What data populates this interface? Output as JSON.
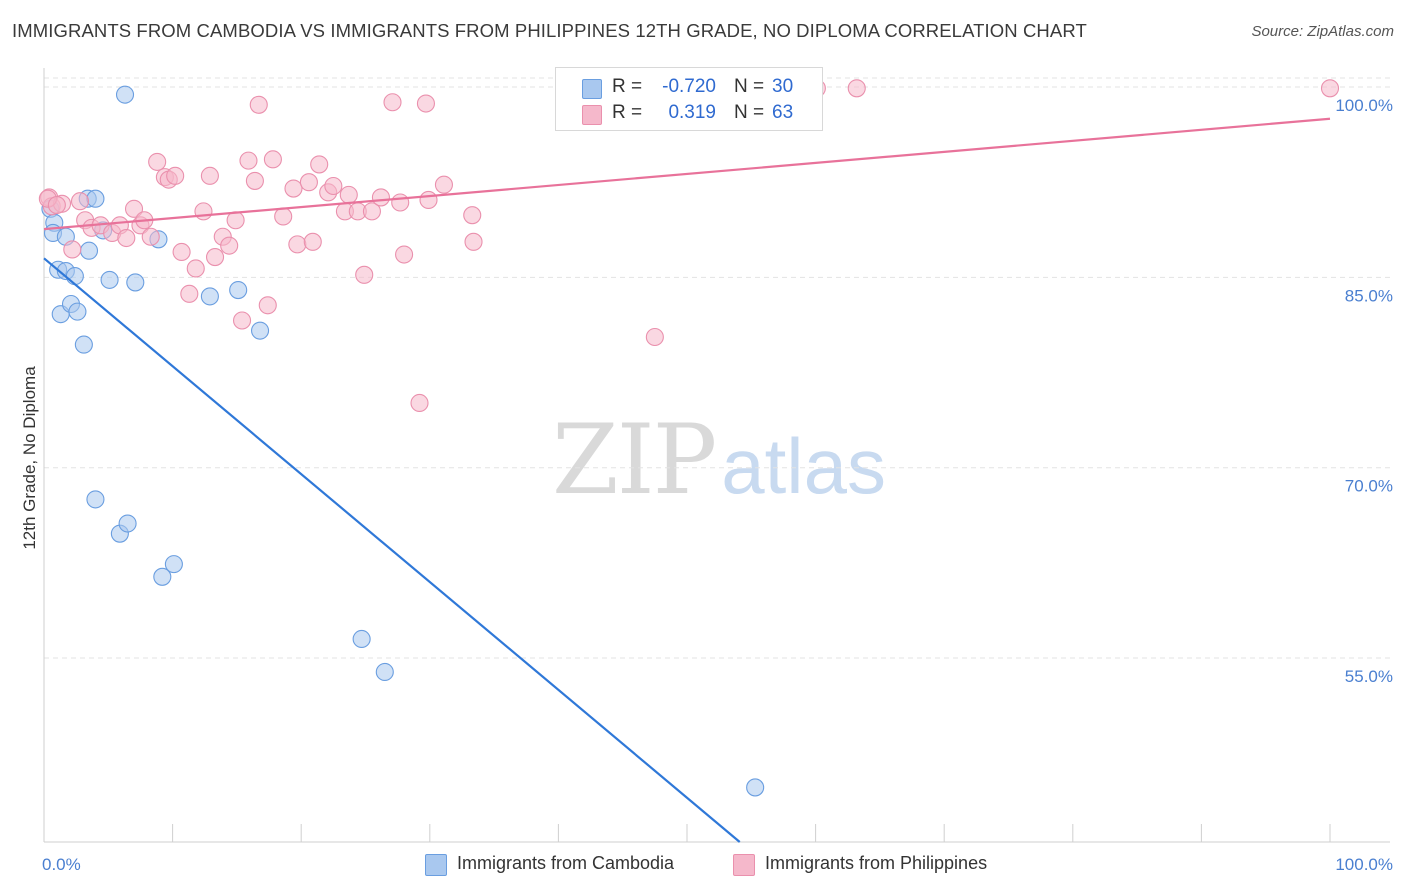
{
  "title": "IMMIGRANTS FROM CAMBODIA VS IMMIGRANTS FROM PHILIPPINES 12TH GRADE, NO DIPLOMA CORRELATION CHART",
  "source": "Source: ZipAtlas.com",
  "watermark": {
    "zip": "ZIP",
    "atlas": "atlas"
  },
  "legend": {
    "rows": [
      {
        "r_label": "R =",
        "r_value": "-0.720",
        "n_label": "N =",
        "n_value": "30"
      },
      {
        "r_label": "R =",
        "r_value": "0.319",
        "n_label": "N =",
        "n_value": "63"
      }
    ]
  },
  "colors": {
    "blue_fill": "#a9c8ef",
    "blue_stroke": "#6a9ee0",
    "blue_line": "#2f78d8",
    "pink_fill": "#f5b8cb",
    "pink_stroke": "#ea90ad",
    "pink_line": "#e8729a",
    "tick_text": "#4a7fd0",
    "grid": "#e3e3e3"
  },
  "chart_data": {
    "type": "scatter",
    "title": "IMMIGRANTS FROM CAMBODIA VS IMMIGRANTS FROM PHILIPPINES 12TH GRADE, NO DIPLOMA CORRELATION CHART",
    "xlabel": "",
    "ylabel": "12th Grade, No Diploma",
    "xlim": [
      0,
      100
    ],
    "ylim": [
      40.5,
      101.5
    ],
    "x_tick_labels": [
      "0.0%",
      "100.0%"
    ],
    "y_ticks": [
      55,
      70,
      85,
      100
    ],
    "y_tick_labels": [
      "55.0%",
      "70.0%",
      "85.0%",
      "100.0%"
    ],
    "grid": true,
    "series": [
      {
        "name": "Immigrants from Cambodia",
        "color": "blue",
        "points": [
          [
            0.5,
            90.4
          ],
          [
            0.8,
            89.3
          ],
          [
            0.7,
            88.5
          ],
          [
            1.1,
            85.6
          ],
          [
            1.7,
            85.5
          ],
          [
            2.4,
            85.1
          ],
          [
            1.3,
            82.1
          ],
          [
            2.1,
            82.9
          ],
          [
            2.6,
            82.3
          ],
          [
            1.7,
            88.2
          ],
          [
            3.5,
            87.1
          ],
          [
            3.4,
            91.2
          ],
          [
            4.0,
            91.2
          ],
          [
            4.6,
            88.7
          ],
          [
            5.1,
            84.8
          ],
          [
            6.3,
            99.4
          ],
          [
            7.1,
            84.6
          ],
          [
            8.9,
            88.0
          ],
          [
            12.9,
            83.5
          ],
          [
            15.1,
            84.0
          ],
          [
            16.8,
            80.8
          ],
          [
            3.1,
            79.7
          ],
          [
            4.0,
            67.5
          ],
          [
            5.9,
            64.8
          ],
          [
            6.5,
            65.6
          ],
          [
            9.2,
            61.4
          ],
          [
            10.1,
            62.4
          ],
          [
            24.7,
            56.5
          ],
          [
            26.5,
            53.9
          ],
          [
            55.3,
            44.8
          ]
        ]
      },
      {
        "name": "Immigrants from Philippines",
        "color": "pink",
        "points": [
          [
            0.4,
            91.3
          ],
          [
            0.6,
            90.6
          ],
          [
            1.4,
            90.8
          ],
          [
            2.2,
            87.2
          ],
          [
            2.8,
            91.0
          ],
          [
            3.2,
            89.5
          ],
          [
            3.7,
            88.9
          ],
          [
            4.4,
            89.1
          ],
          [
            5.3,
            88.5
          ],
          [
            5.9,
            89.1
          ],
          [
            6.4,
            88.1
          ],
          [
            7.0,
            90.4
          ],
          [
            7.5,
            89.1
          ],
          [
            7.8,
            89.5
          ],
          [
            8.3,
            88.2
          ],
          [
            8.8,
            94.1
          ],
          [
            9.4,
            92.9
          ],
          [
            9.7,
            92.7
          ],
          [
            10.2,
            93.0
          ],
          [
            10.7,
            87.0
          ],
          [
            11.3,
            83.7
          ],
          [
            11.8,
            85.7
          ],
          [
            12.4,
            90.2
          ],
          [
            12.9,
            93.0
          ],
          [
            13.3,
            86.6
          ],
          [
            13.9,
            88.2
          ],
          [
            14.4,
            87.5
          ],
          [
            14.9,
            89.5
          ],
          [
            15.4,
            81.6
          ],
          [
            15.9,
            94.2
          ],
          [
            16.4,
            92.6
          ],
          [
            16.7,
            98.6
          ],
          [
            17.4,
            82.8
          ],
          [
            17.8,
            94.3
          ],
          [
            18.6,
            89.8
          ],
          [
            19.4,
            92.0
          ],
          [
            19.7,
            87.6
          ],
          [
            20.6,
            92.5
          ],
          [
            20.9,
            87.8
          ],
          [
            21.4,
            93.9
          ],
          [
            22.1,
            91.7
          ],
          [
            22.5,
            92.2
          ],
          [
            23.4,
            90.2
          ],
          [
            23.7,
            91.5
          ],
          [
            24.4,
            90.2
          ],
          [
            24.9,
            85.2
          ],
          [
            25.5,
            90.2
          ],
          [
            26.2,
            91.3
          ],
          [
            27.1,
            98.8
          ],
          [
            27.7,
            90.9
          ],
          [
            28.0,
            86.8
          ],
          [
            29.7,
            98.7
          ],
          [
            29.9,
            91.1
          ],
          [
            29.2,
            75.1
          ],
          [
            31.1,
            92.3
          ],
          [
            33.3,
            89.9
          ],
          [
            33.4,
            87.8
          ],
          [
            47.5,
            80.3
          ],
          [
            60.1,
            99.9
          ],
          [
            63.2,
            99.9
          ],
          [
            100.0,
            99.9
          ],
          [
            0.3,
            91.2
          ],
          [
            1.0,
            90.7
          ]
        ]
      }
    ],
    "trendlines": [
      {
        "series": "Immigrants from Cambodia",
        "x": [
          0,
          54.1
        ],
        "y": [
          86.5,
          40.5
        ]
      },
      {
        "series": "Immigrants from Philippines",
        "x": [
          0,
          100
        ],
        "y": [
          88.8,
          97.5
        ]
      }
    ]
  }
}
